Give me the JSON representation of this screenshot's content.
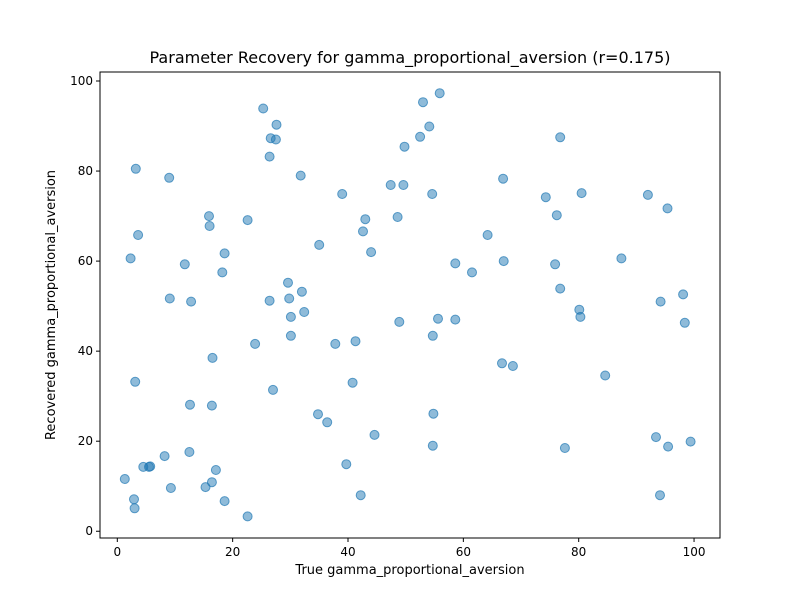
{
  "chart_data": {
    "type": "scatter",
    "title": "Parameter Recovery for gamma_proportional_aversion (r=0.175)",
    "xlabel": "True gamma_proportional_aversion",
    "ylabel": "Recovered gamma_proportional_aversion",
    "xlim": [
      -3,
      104.5
    ],
    "ylim": [
      -1.5,
      102
    ],
    "xticks": [
      0,
      20,
      40,
      60,
      80,
      100
    ],
    "yticks": [
      0,
      20,
      40,
      60,
      80,
      100
    ],
    "xtick_labels": [
      "0",
      "20",
      "40",
      "60",
      "80",
      "100"
    ],
    "ytick_labels": [
      "0",
      "20",
      "40",
      "60",
      "80",
      "100"
    ],
    "grid": false,
    "color": "#1f77b4",
    "points": [
      [
        25.3,
        93.9
      ],
      [
        55.9,
        97.3
      ],
      [
        53.0,
        95.3
      ],
      [
        27.6,
        90.3
      ],
      [
        54.1,
        89.9
      ],
      [
        26.6,
        87.3
      ],
      [
        27.5,
        87.0
      ],
      [
        52.5,
        87.6
      ],
      [
        76.8,
        87.5
      ],
      [
        49.8,
        85.4
      ],
      [
        26.4,
        83.2
      ],
      [
        3.2,
        80.5
      ],
      [
        31.8,
        79.0
      ],
      [
        9.0,
        78.5
      ],
      [
        66.9,
        78.3
      ],
      [
        47.4,
        76.9
      ],
      [
        49.6,
        76.9
      ],
      [
        39.0,
        74.9
      ],
      [
        54.6,
        74.9
      ],
      [
        80.5,
        75.1
      ],
      [
        74.3,
        74.2
      ],
      [
        92.0,
        74.7
      ],
      [
        95.4,
        71.7
      ],
      [
        15.9,
        70.0
      ],
      [
        22.6,
        69.1
      ],
      [
        43.0,
        69.3
      ],
      [
        48.6,
        69.8
      ],
      [
        76.2,
        70.2
      ],
      [
        16.0,
        67.8
      ],
      [
        42.6,
        66.6
      ],
      [
        3.6,
        65.8
      ],
      [
        64.2,
        65.8
      ],
      [
        35.0,
        63.6
      ],
      [
        18.6,
        61.7
      ],
      [
        44.0,
        62.0
      ],
      [
        2.3,
        60.6
      ],
      [
        87.4,
        60.6
      ],
      [
        11.7,
        59.3
      ],
      [
        58.6,
        59.5
      ],
      [
        67.0,
        60.0
      ],
      [
        75.9,
        59.3
      ],
      [
        18.2,
        57.5
      ],
      [
        61.5,
        57.5
      ],
      [
        29.6,
        55.2
      ],
      [
        76.8,
        53.9
      ],
      [
        32.0,
        53.2
      ],
      [
        9.1,
        51.7
      ],
      [
        12.8,
        51.0
      ],
      [
        26.4,
        51.2
      ],
      [
        29.8,
        51.7
      ],
      [
        94.2,
        51.0
      ],
      [
        98.1,
        52.6
      ],
      [
        32.4,
        48.7
      ],
      [
        80.1,
        49.2
      ],
      [
        30.1,
        47.6
      ],
      [
        55.6,
        47.2
      ],
      [
        58.6,
        47.0
      ],
      [
        80.3,
        47.6
      ],
      [
        48.9,
        46.5
      ],
      [
        98.4,
        46.3
      ],
      [
        30.1,
        43.4
      ],
      [
        54.7,
        43.4
      ],
      [
        41.3,
        42.2
      ],
      [
        23.9,
        41.6
      ],
      [
        37.8,
        41.6
      ],
      [
        16.5,
        38.5
      ],
      [
        66.7,
        37.3
      ],
      [
        68.6,
        36.7
      ],
      [
        84.6,
        34.6
      ],
      [
        3.1,
        33.2
      ],
      [
        40.8,
        33.0
      ],
      [
        27.0,
        31.4
      ],
      [
        12.6,
        28.1
      ],
      [
        16.4,
        27.9
      ],
      [
        34.8,
        26.0
      ],
      [
        54.8,
        26.1
      ],
      [
        36.4,
        24.2
      ],
      [
        44.6,
        21.4
      ],
      [
        93.4,
        20.9
      ],
      [
        99.4,
        19.9
      ],
      [
        54.7,
        19.0
      ],
      [
        95.5,
        18.8
      ],
      [
        77.6,
        18.5
      ],
      [
        12.5,
        17.6
      ],
      [
        8.2,
        16.7
      ],
      [
        39.7,
        14.9
      ],
      [
        4.5,
        14.3
      ],
      [
        5.5,
        14.3
      ],
      [
        5.7,
        14.4
      ],
      [
        17.1,
        13.6
      ],
      [
        1.3,
        11.6
      ],
      [
        16.4,
        10.9
      ],
      [
        15.3,
        9.8
      ],
      [
        9.3,
        9.6
      ],
      [
        42.2,
        8.0
      ],
      [
        94.1,
        8.0
      ],
      [
        2.9,
        7.1
      ],
      [
        18.6,
        6.7
      ],
      [
        3.0,
        5.1
      ],
      [
        22.6,
        3.3
      ]
    ]
  }
}
